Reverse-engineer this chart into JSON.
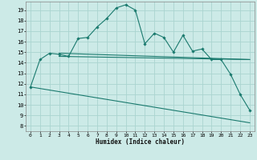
{
  "xlabel": "Humidex (Indice chaleur)",
  "background_color": "#cceae7",
  "grid_color": "#aad4d0",
  "line_color": "#1a7a6e",
  "xlim": [
    -0.5,
    23.5
  ],
  "ylim": [
    7.5,
    19.8
  ],
  "yticks": [
    8,
    9,
    10,
    11,
    12,
    13,
    14,
    15,
    16,
    17,
    18,
    19
  ],
  "xticks": [
    0,
    1,
    2,
    3,
    4,
    5,
    6,
    7,
    8,
    9,
    10,
    11,
    12,
    13,
    14,
    15,
    16,
    17,
    18,
    19,
    20,
    21,
    22,
    23
  ],
  "series_main": {
    "x": [
      0,
      1,
      2,
      3,
      4,
      5,
      6,
      7,
      8,
      9,
      10,
      11,
      12,
      13,
      14,
      15,
      16,
      17,
      18,
      19,
      20,
      21,
      22,
      23
    ],
    "y": [
      11.7,
      14.3,
      14.9,
      14.8,
      14.6,
      16.3,
      16.4,
      17.4,
      18.2,
      19.2,
      19.5,
      19.0,
      15.8,
      16.8,
      16.4,
      15.0,
      16.6,
      15.1,
      15.3,
      14.3,
      14.3,
      12.9,
      11.0,
      9.5
    ]
  },
  "series_diag": {
    "x": [
      0,
      23
    ],
    "y": [
      11.7,
      8.3
    ]
  },
  "series_flat1": {
    "x": [
      3,
      23
    ],
    "y": [
      14.6,
      14.3
    ]
  },
  "series_flat2": {
    "x": [
      3,
      23
    ],
    "y": [
      14.9,
      14.3
    ]
  }
}
